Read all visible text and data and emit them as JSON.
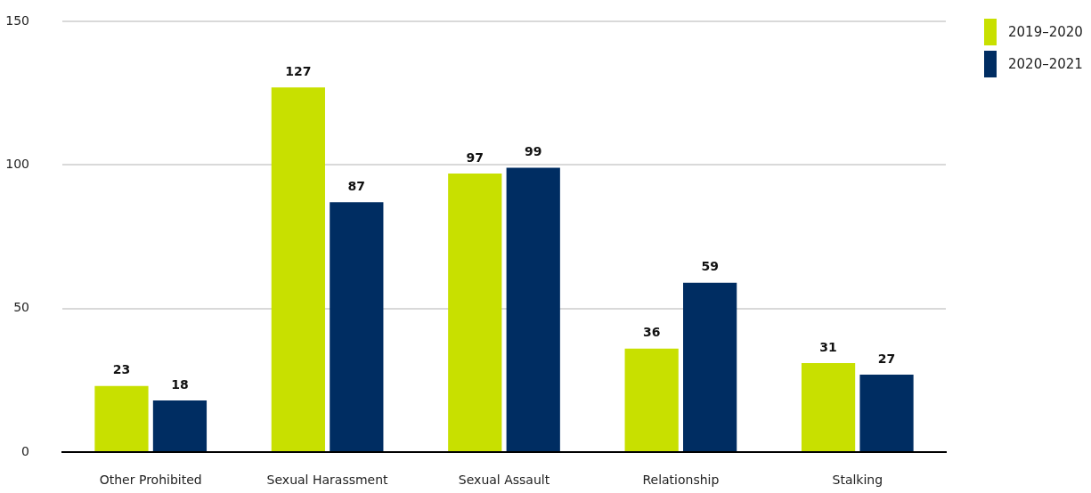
{
  "chart_data": {
    "type": "bar",
    "categories": [
      "Other Prohibited",
      "Sexual Harassment",
      "Sexual Assault",
      "Relationship",
      "Stalking"
    ],
    "series": [
      {
        "name": "2019–2020",
        "color": "#c8e000",
        "values": [
          23,
          127,
          97,
          36,
          31
        ]
      },
      {
        "name": "2020–2021",
        "color": "#002d62",
        "values": [
          18,
          87,
          99,
          59,
          27
        ]
      }
    ],
    "ylim": [
      0,
      150
    ],
    "yticks": [
      0,
      50,
      100,
      150
    ],
    "grid": "y",
    "legend": "top right",
    "data_labels": true
  }
}
